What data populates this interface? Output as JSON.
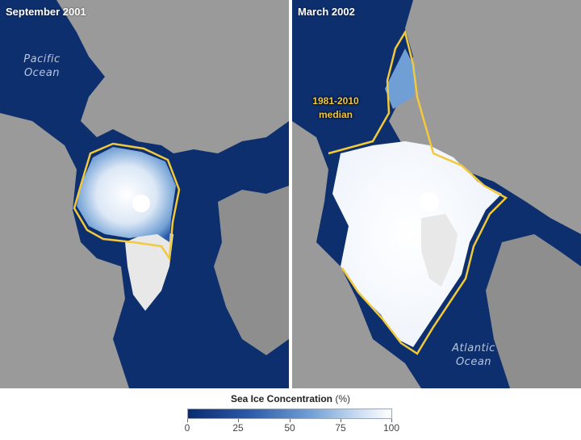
{
  "panels": {
    "left": {
      "title": "September 2001",
      "ocean_label": "Pacific Ocean",
      "ocean_line1": "Pacific",
      "ocean_line2": "Ocean"
    },
    "right": {
      "title": "March 2002",
      "ocean_label": "Atlantic Ocean",
      "ocean_line1": "Atlantic",
      "ocean_line2": "Ocean",
      "median_line1": "1981-2010",
      "median_line2": "median"
    }
  },
  "legend": {
    "title": "Sea Ice Concentration",
    "unit": "(%)",
    "ticks": [
      "0",
      "25",
      "50",
      "75",
      "100"
    ]
  },
  "colors": {
    "ocean": "#0e2f6e",
    "land": "#9a9a9a",
    "ice": "#ffffff",
    "median_line": "#f2c93b"
  }
}
